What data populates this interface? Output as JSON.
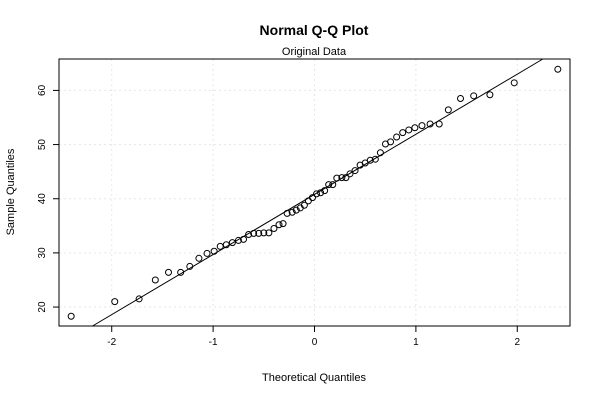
{
  "chart_data": {
    "type": "scatter",
    "title": "Normal Q-Q Plot",
    "subtitle": "Original Data",
    "xlabel": "Theoretical Quantiles",
    "ylabel": "Sample Quantiles",
    "xlim": [
      -2.52,
      2.52
    ],
    "ylim": [
      16.5,
      65.8
    ],
    "xticks": [
      "-2",
      "-1",
      "0",
      "1",
      "2"
    ],
    "yticks": [
      "20",
      "30",
      "40",
      "50",
      "60"
    ],
    "grid": true,
    "reference_line": {
      "slope": 11.1,
      "intercept": 40.8
    },
    "points": [
      {
        "x": -2.4,
        "y": 18.3
      },
      {
        "x": -1.97,
        "y": 21.0
      },
      {
        "x": -1.73,
        "y": 21.5
      },
      {
        "x": -1.57,
        "y": 25.0
      },
      {
        "x": -1.44,
        "y": 26.4
      },
      {
        "x": -1.32,
        "y": 26.4
      },
      {
        "x": -1.23,
        "y": 27.5
      },
      {
        "x": -1.14,
        "y": 29.0
      },
      {
        "x": -1.06,
        "y": 29.9
      },
      {
        "x": -0.99,
        "y": 30.3
      },
      {
        "x": -0.93,
        "y": 31.2
      },
      {
        "x": -0.87,
        "y": 31.5
      },
      {
        "x": -0.81,
        "y": 31.9
      },
      {
        "x": -0.75,
        "y": 32.3
      },
      {
        "x": -0.7,
        "y": 32.5
      },
      {
        "x": -0.65,
        "y": 33.4
      },
      {
        "x": -0.6,
        "y": 33.6
      },
      {
        "x": -0.55,
        "y": 33.6
      },
      {
        "x": -0.5,
        "y": 33.7
      },
      {
        "x": -0.45,
        "y": 33.7
      },
      {
        "x": -0.4,
        "y": 34.5
      },
      {
        "x": -0.35,
        "y": 35.2
      },
      {
        "x": -0.31,
        "y": 35.4
      },
      {
        "x": -0.27,
        "y": 37.3
      },
      {
        "x": -0.22,
        "y": 37.5
      },
      {
        "x": -0.18,
        "y": 37.9
      },
      {
        "x": -0.14,
        "y": 38.3
      },
      {
        "x": -0.1,
        "y": 38.8
      },
      {
        "x": -0.06,
        "y": 39.6
      },
      {
        "x": -0.02,
        "y": 40.2
      },
      {
        "x": 0.02,
        "y": 40.9
      },
      {
        "x": 0.06,
        "y": 41.1
      },
      {
        "x": 0.1,
        "y": 41.5
      },
      {
        "x": 0.14,
        "y": 42.6
      },
      {
        "x": 0.18,
        "y": 42.6
      },
      {
        "x": 0.22,
        "y": 43.8
      },
      {
        "x": 0.27,
        "y": 43.9
      },
      {
        "x": 0.31,
        "y": 43.9
      },
      {
        "x": 0.35,
        "y": 44.6
      },
      {
        "x": 0.4,
        "y": 45.2
      },
      {
        "x": 0.45,
        "y": 46.2
      },
      {
        "x": 0.5,
        "y": 46.6
      },
      {
        "x": 0.55,
        "y": 47.1
      },
      {
        "x": 0.6,
        "y": 47.3
      },
      {
        "x": 0.65,
        "y": 48.5
      },
      {
        "x": 0.7,
        "y": 50.1
      },
      {
        "x": 0.75,
        "y": 50.5
      },
      {
        "x": 0.81,
        "y": 51.4
      },
      {
        "x": 0.87,
        "y": 52.2
      },
      {
        "x": 0.93,
        "y": 52.7
      },
      {
        "x": 0.99,
        "y": 53.1
      },
      {
        "x": 1.06,
        "y": 53.5
      },
      {
        "x": 1.14,
        "y": 53.8
      },
      {
        "x": 1.23,
        "y": 53.8
      },
      {
        "x": 1.32,
        "y": 56.4
      },
      {
        "x": 1.44,
        "y": 58.5
      },
      {
        "x": 1.57,
        "y": 59.0
      },
      {
        "x": 1.73,
        "y": 59.2
      },
      {
        "x": 1.97,
        "y": 61.4
      },
      {
        "x": 2.4,
        "y": 63.9
      }
    ]
  }
}
